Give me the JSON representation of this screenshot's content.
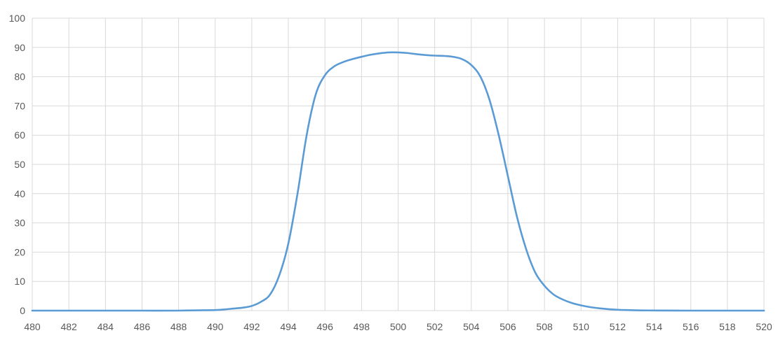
{
  "chart_data": {
    "type": "line",
    "title": "",
    "xlabel": "",
    "ylabel": "",
    "xlim": [
      480,
      520
    ],
    "ylim": [
      0,
      100
    ],
    "x_ticks": [
      480,
      482,
      484,
      486,
      488,
      490,
      492,
      494,
      496,
      498,
      500,
      502,
      504,
      506,
      508,
      510,
      512,
      514,
      516,
      518,
      520
    ],
    "y_ticks": [
      0,
      10,
      20,
      30,
      40,
      50,
      60,
      70,
      80,
      90,
      100
    ],
    "grid": true,
    "legend": "none",
    "colors": {
      "line": "#5b9bd5",
      "grid": "#d9d9d9",
      "tick_text": "#595959"
    },
    "series": [
      {
        "x": [
          480,
          482,
          484,
          486,
          488,
          489,
          490,
          490.5,
          491,
          491.5,
          492,
          492.5,
          493,
          493.5,
          494,
          494.5,
          495,
          495.5,
          496,
          496.5,
          497,
          497.5,
          498,
          498.5,
          499,
          499.5,
          500,
          500.5,
          501,
          501.5,
          502,
          502.5,
          503,
          503.5,
          504,
          504.5,
          505,
          505.5,
          506,
          506.5,
          507,
          507.5,
          508,
          508.5,
          509,
          509.5,
          510,
          510.5,
          511,
          511.5,
          512,
          513,
          514,
          516,
          518,
          520
        ],
        "values": [
          0,
          0,
          0,
          0,
          0,
          0.1,
          0.2,
          0.4,
          0.7,
          1.0,
          1.6,
          3.0,
          5.5,
          12,
          23,
          40,
          60,
          74,
          80.5,
          83.5,
          85,
          86,
          86.8,
          87.5,
          88,
          88.3,
          88.3,
          88.1,
          87.7,
          87.4,
          87.2,
          87.1,
          86.8,
          86,
          84,
          80,
          72,
          60,
          46,
          32,
          21,
          13,
          8.5,
          5.5,
          3.8,
          2.6,
          1.8,
          1.2,
          0.8,
          0.5,
          0.3,
          0.1,
          0.05,
          0,
          0,
          0
        ]
      }
    ]
  }
}
